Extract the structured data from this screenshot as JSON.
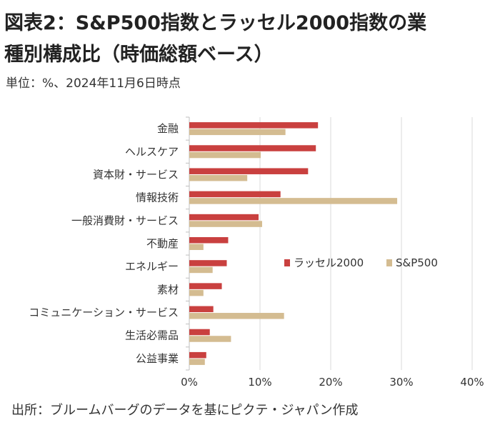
{
  "title_line1": "図表2：S&P500指数とラッセル2000指数の業",
  "title_line2": "種別構成比（時価総額ベース）",
  "subtitle": "単位：%、2024年11月6日時点",
  "source": "出所：ブルームバーグのデータを基にピクテ・ジャパン作成",
  "colors": {
    "russell": "#c9403f",
    "sp500": "#d4bc91",
    "grid": "#d9d9d9",
    "axis": "#bfbfbf"
  },
  "chart_data": {
    "type": "bar",
    "orientation": "horizontal",
    "categories": [
      "金融",
      "ヘルスケア",
      "資本財・サービス",
      "情報技術",
      "一般消費財・サービス",
      "不動産",
      "エネルギー",
      "素材",
      "コミュニケーション・サービス",
      "生活必需品",
      "公益事業"
    ],
    "series": [
      {
        "name": "ラッセル2000",
        "values": [
          18.2,
          17.9,
          16.8,
          12.9,
          9.8,
          5.5,
          5.3,
          4.6,
          3.4,
          2.9,
          2.4
        ]
      },
      {
        "name": "S&P500",
        "values": [
          13.6,
          10.1,
          8.2,
          29.4,
          10.3,
          2.0,
          3.3,
          2.0,
          13.4,
          5.9,
          2.2
        ]
      }
    ],
    "xlim": [
      0,
      40
    ],
    "xticks": [
      "0%",
      "10%",
      "20%",
      "30%",
      "40%"
    ],
    "grid": true,
    "legend_position": "center-right"
  }
}
